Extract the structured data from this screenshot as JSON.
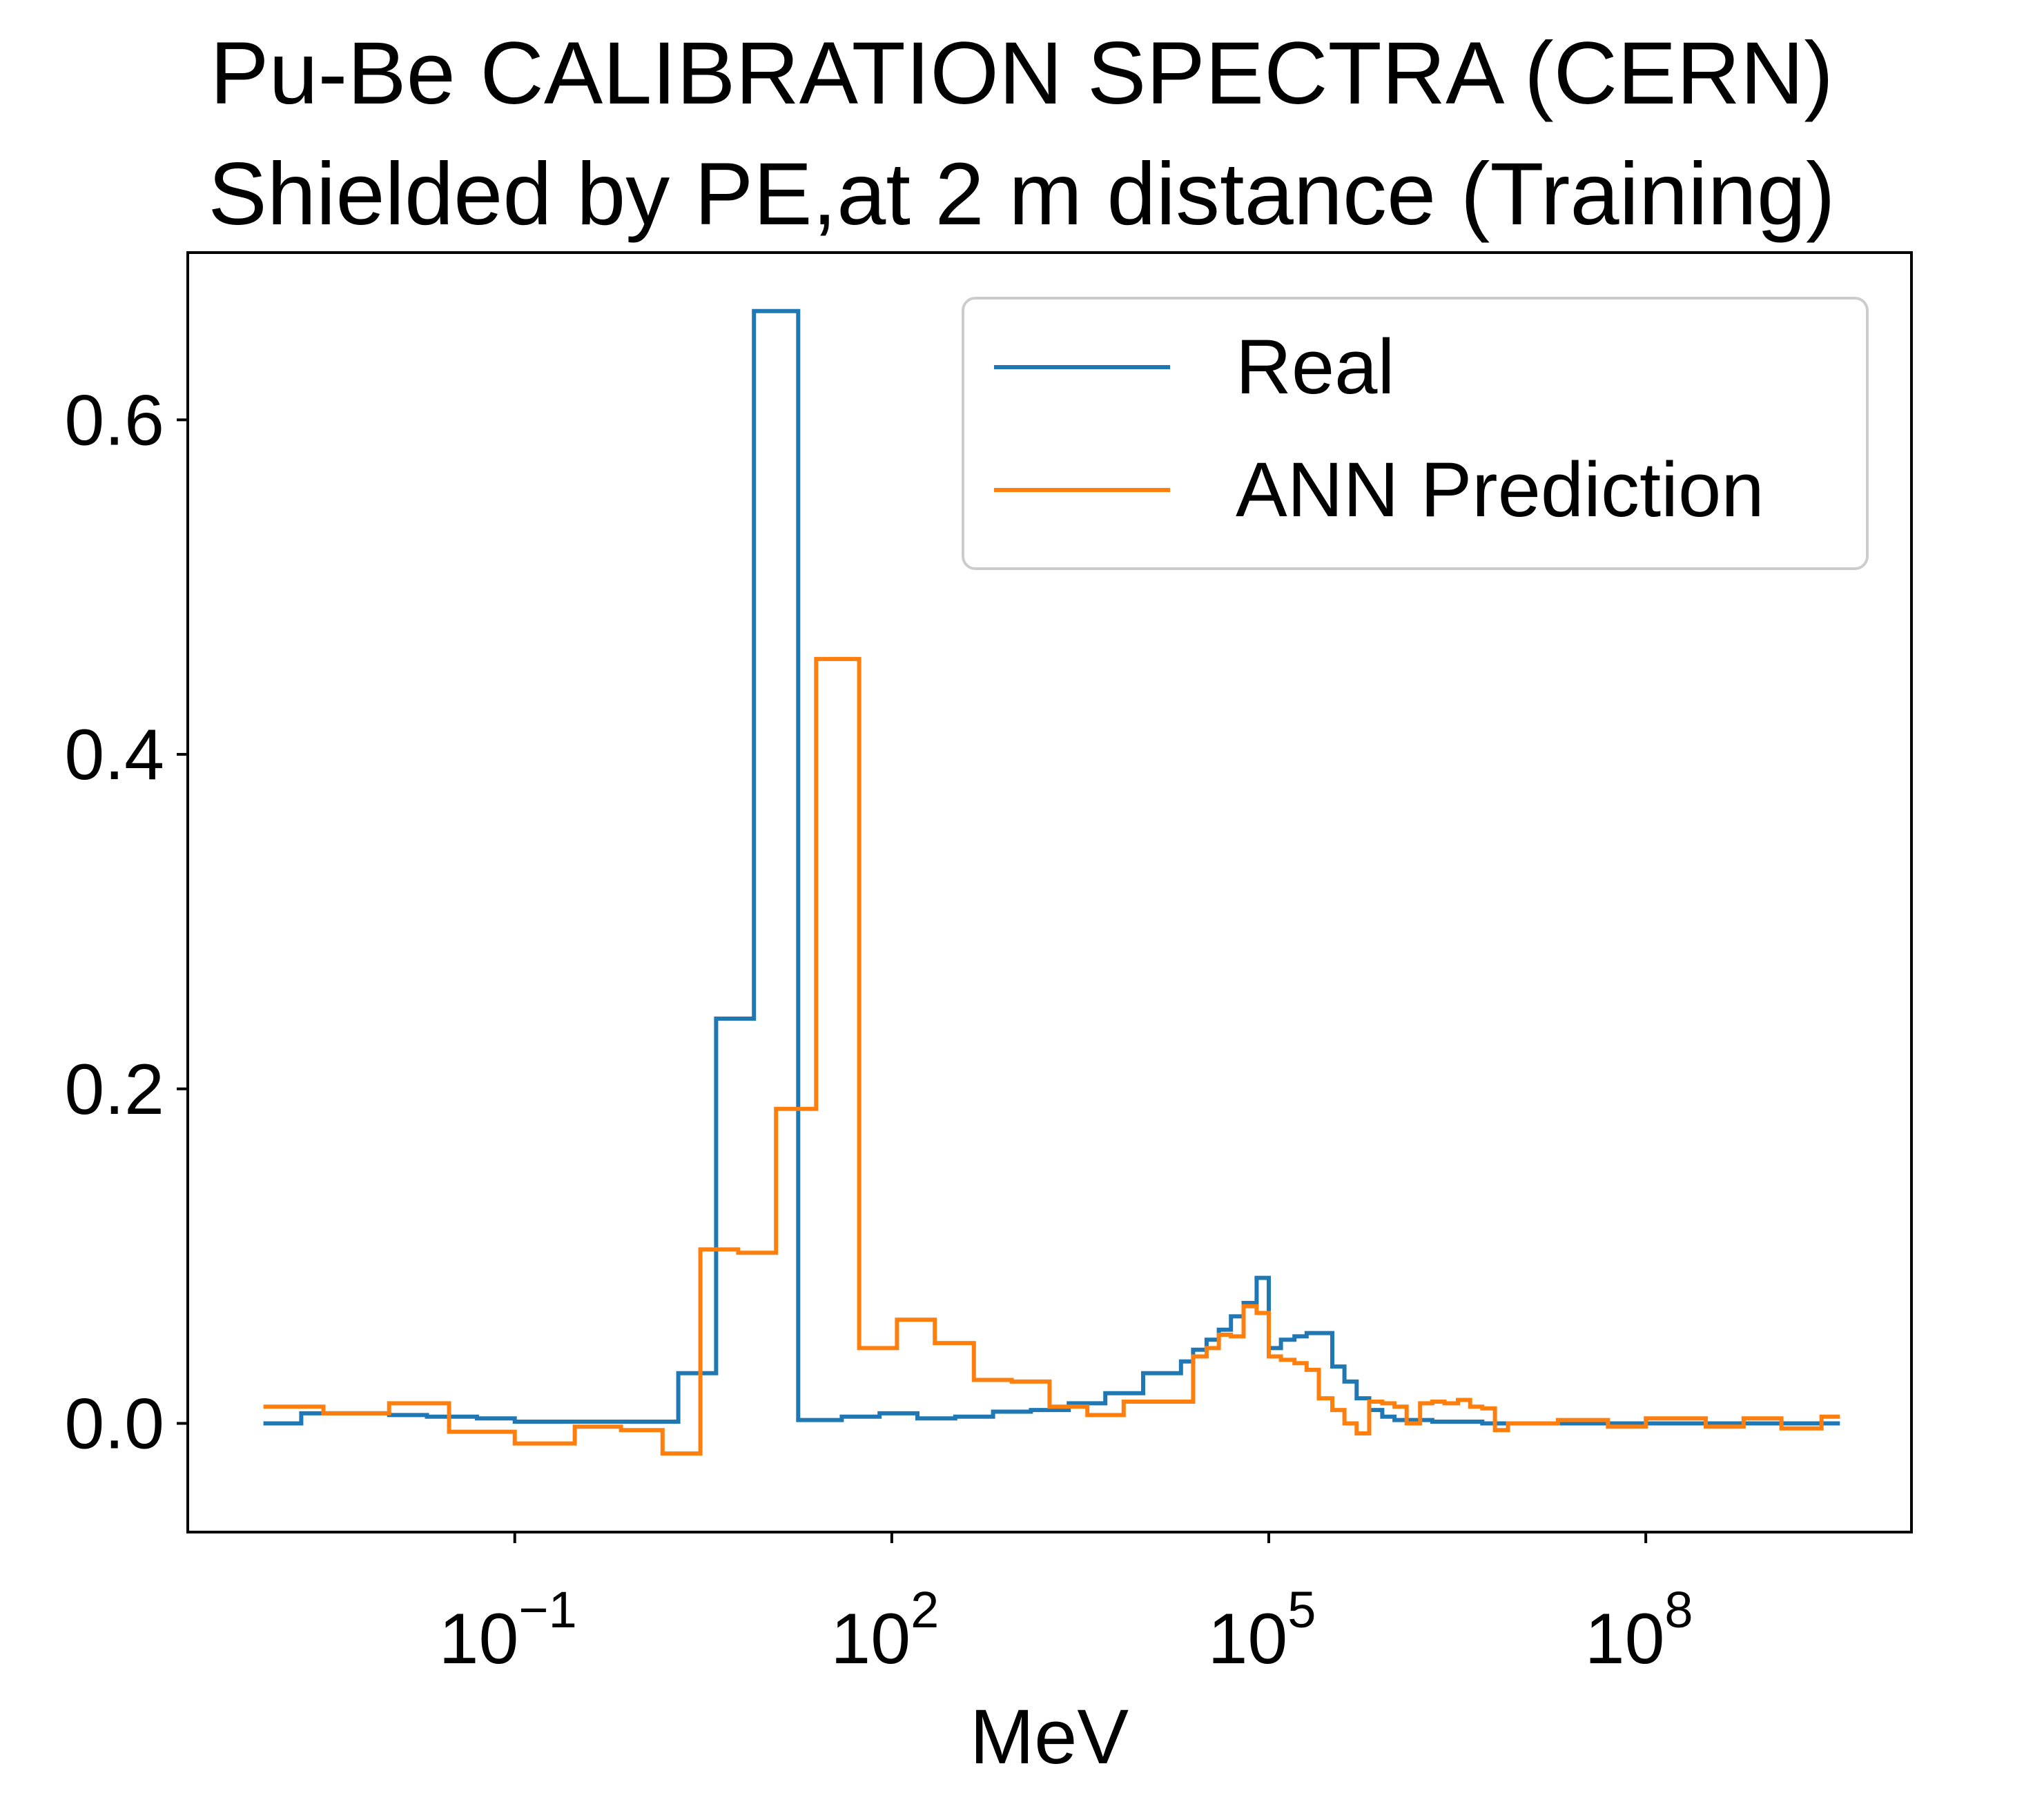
{
  "chart_data": {
    "type": "line",
    "title": "Pu-Be CALIBRATION SPECTRA (CERN)",
    "subtitle": "Shielded by PE,at 2 m distance (Training)",
    "xlabel": "MeV",
    "ylabel": "",
    "x_scale": "log",
    "xlim": [
      0.00025,
      13000000000.0
    ],
    "ylim": [
      -0.065,
      0.7
    ],
    "grid": false,
    "legend_position": "top-right",
    "x_ticks": [
      {
        "value": 0.1,
        "base": "10",
        "exp": "−1"
      },
      {
        "value": 100,
        "base": "10",
        "exp": "2"
      },
      {
        "value": 100000,
        "base": "10",
        "exp": "5"
      },
      {
        "value": 100000000,
        "base": "10",
        "exp": "8"
      }
    ],
    "y_ticks": [
      {
        "value": 0.0,
        "label": "0.0"
      },
      {
        "value": 0.2,
        "label": "0.2"
      },
      {
        "value": 0.4,
        "label": "0.4"
      },
      {
        "value": 0.6,
        "label": "0.6"
      }
    ],
    "series": [
      {
        "name": "Real",
        "color": "#1f77b4",
        "step": "post",
        "points": [
          [
            0.001,
            0.0
          ],
          [
            0.002,
            0.006
          ],
          [
            0.005,
            0.006
          ],
          [
            0.01,
            0.005
          ],
          [
            0.02,
            0.004
          ],
          [
            0.05,
            0.003
          ],
          [
            0.1,
            0.001
          ],
          [
            0.2,
            0.001
          ],
          [
            0.5,
            0.001
          ],
          [
            1,
            0.001
          ],
          [
            2,
            0.03
          ],
          [
            4,
            0.242
          ],
          [
            8,
            0.665
          ],
          [
            18,
            0.002
          ],
          [
            40,
            0.004
          ],
          [
            80,
            0.006
          ],
          [
            160,
            0.003
          ],
          [
            320,
            0.004
          ],
          [
            640,
            0.007
          ],
          [
            1280,
            0.008
          ],
          [
            2560,
            0.012
          ],
          [
            5000,
            0.018
          ],
          [
            10000,
            0.03
          ],
          [
            20000,
            0.037
          ],
          [
            25000,
            0.044
          ],
          [
            32000,
            0.05
          ],
          [
            40000,
            0.056
          ],
          [
            50000,
            0.064
          ],
          [
            63000,
            0.072
          ],
          [
            80000,
            0.087
          ],
          [
            100000,
            0.045
          ],
          [
            125000,
            0.05
          ],
          [
            160000,
            0.052
          ],
          [
            200000,
            0.054
          ],
          [
            320000,
            0.034
          ],
          [
            400000,
            0.025
          ],
          [
            500000,
            0.015
          ],
          [
            630000,
            0.008
          ],
          [
            800000,
            0.004
          ],
          [
            1000000,
            0.002
          ],
          [
            2000000,
            0.001
          ],
          [
            5000000,
            0.0
          ],
          [
            10000000,
            0.0
          ],
          [
            100000000.0,
            0.0
          ],
          [
            1000000000.0,
            0.0
          ],
          [
            3500000000.0,
            0.0
          ]
        ]
      },
      {
        "name": "ANN Prediction",
        "color": "#ff7f0e",
        "step": "post",
        "points": [
          [
            0.001,
            0.01
          ],
          [
            0.003,
            0.006
          ],
          [
            0.01,
            0.012
          ],
          [
            0.03,
            -0.005
          ],
          [
            0.1,
            -0.012
          ],
          [
            0.3,
            -0.002
          ],
          [
            0.7,
            -0.004
          ],
          [
            1.5,
            -0.018
          ],
          [
            3,
            0.104
          ],
          [
            6,
            0.102
          ],
          [
            12,
            0.188
          ],
          [
            25,
            0.457
          ],
          [
            55,
            0.045
          ],
          [
            110,
            0.062
          ],
          [
            220,
            0.048
          ],
          [
            450,
            0.026
          ],
          [
            900,
            0.025
          ],
          [
            1800,
            0.01
          ],
          [
            3600,
            0.005
          ],
          [
            7000,
            0.013
          ],
          [
            15000,
            0.013
          ],
          [
            25000,
            0.04
          ],
          [
            32000,
            0.045
          ],
          [
            40000,
            0.053
          ],
          [
            50000,
            0.052
          ],
          [
            63000,
            0.07
          ],
          [
            80000,
            0.066
          ],
          [
            100000,
            0.04
          ],
          [
            125000,
            0.038
          ],
          [
            160000,
            0.036
          ],
          [
            200000,
            0.032
          ],
          [
            250000,
            0.015
          ],
          [
            320000,
            0.008
          ],
          [
            400000,
            0.0
          ],
          [
            500000,
            -0.006
          ],
          [
            630000,
            0.013
          ],
          [
            800000,
            0.012
          ],
          [
            1000000,
            0.01
          ],
          [
            1250000,
            0.0
          ],
          [
            1600000,
            0.012
          ],
          [
            2000000,
            0.013
          ],
          [
            2500000,
            0.012
          ],
          [
            3200000,
            0.014
          ],
          [
            4000000,
            0.01
          ],
          [
            5000000,
            0.009
          ],
          [
            6300000,
            -0.004
          ],
          [
            8000000,
            0.0
          ],
          [
            12000000.0,
            0.0
          ],
          [
            20000000.0,
            0.002
          ],
          [
            50000000.0,
            -0.002
          ],
          [
            100000000.0,
            0.003
          ],
          [
            300000000.0,
            -0.002
          ],
          [
            600000000.0,
            0.003
          ],
          [
            1200000000.0,
            -0.003
          ],
          [
            2500000000.0,
            0.004
          ],
          [
            3500000000.0,
            0.004
          ]
        ]
      }
    ]
  }
}
